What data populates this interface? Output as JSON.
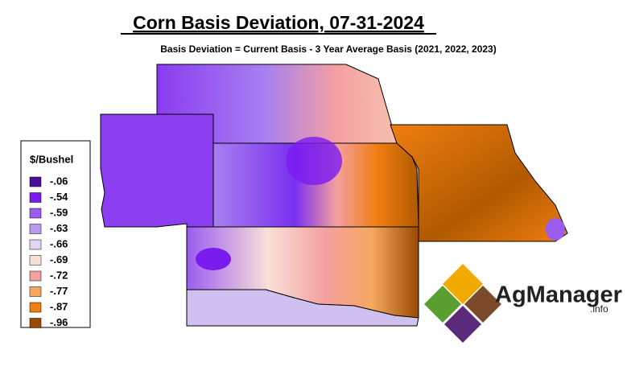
{
  "title": "Corn Basis Deviation, 07-31-2024",
  "subtitle": "Basis Deviation = Current Basis - 3 Year Average Basis (2021, 2022, 2023)",
  "legend": {
    "title": "$/Bushel",
    "items": [
      {
        "label": "-.06",
        "color": "#4b0f9e"
      },
      {
        "label": "-.54",
        "color": "#7a1cf0"
      },
      {
        "label": "-.59",
        "color": "#9b5cf0"
      },
      {
        "label": "-.63",
        "color": "#b89af0"
      },
      {
        "label": "-.66",
        "color": "#e2d6f8"
      },
      {
        "label": "-.69",
        "color": "#f8e0d8"
      },
      {
        "label": "-.72",
        "color": "#f4a0a0"
      },
      {
        "label": "-.77",
        "color": "#f5a860"
      },
      {
        "label": "-.87",
        "color": "#f07e10"
      },
      {
        "label": "-.96",
        "color": "#9a4a00"
      }
    ]
  },
  "logo": {
    "name": "AgManager",
    "suffix": ".info"
  }
}
